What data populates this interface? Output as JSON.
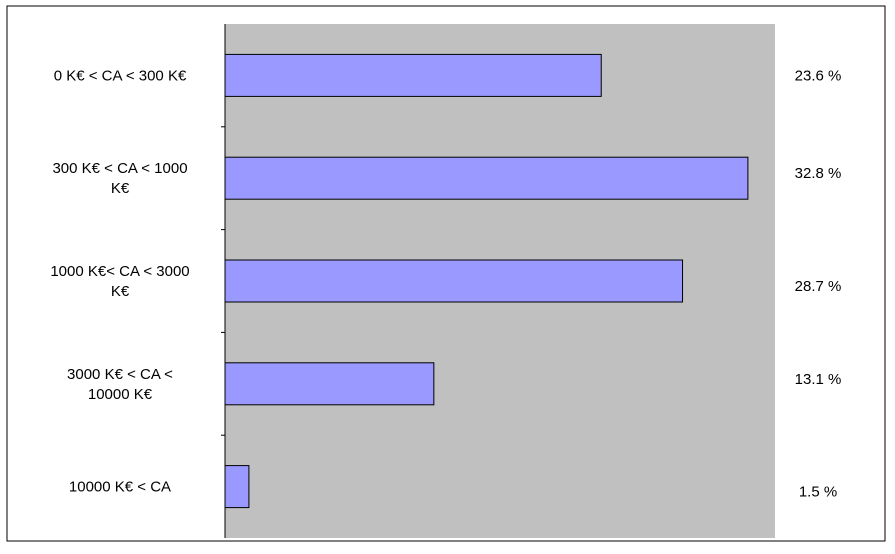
{
  "chart_data": {
    "type": "bar",
    "orientation": "horizontal",
    "categories": [
      "0 K€ < CA < 300 K€",
      "300 K€ < CA < 1000 K€",
      "1000 K€< CA < 3000 K€",
      "3000 K€ < CA < 10000 K€",
      "10000 K€ < CA"
    ],
    "category_lines": [
      [
        "0 K€ < CA < 300 K€"
      ],
      [
        "300 K€ < CA < 1000",
        "K€"
      ],
      [
        "1000 K€< CA < 3000",
        "K€"
      ],
      [
        "3000 K€ < CA <",
        "10000 K€"
      ],
      [
        "10000 K€ < CA"
      ]
    ],
    "values": [
      23.6,
      32.8,
      28.7,
      13.1,
      1.5
    ],
    "data_labels": [
      "23.6 %",
      "32.8 %",
      "28.7 %",
      "13.1 %",
      "1.5 %"
    ],
    "unit": "%",
    "xlim": [
      0,
      34.5
    ],
    "grid": false,
    "legend": "none",
    "colors": {
      "bar_fill": "#9999ff",
      "bar_stroke": "#000000",
      "plot_background": "#c0c0c0",
      "frame": "#000000"
    }
  }
}
